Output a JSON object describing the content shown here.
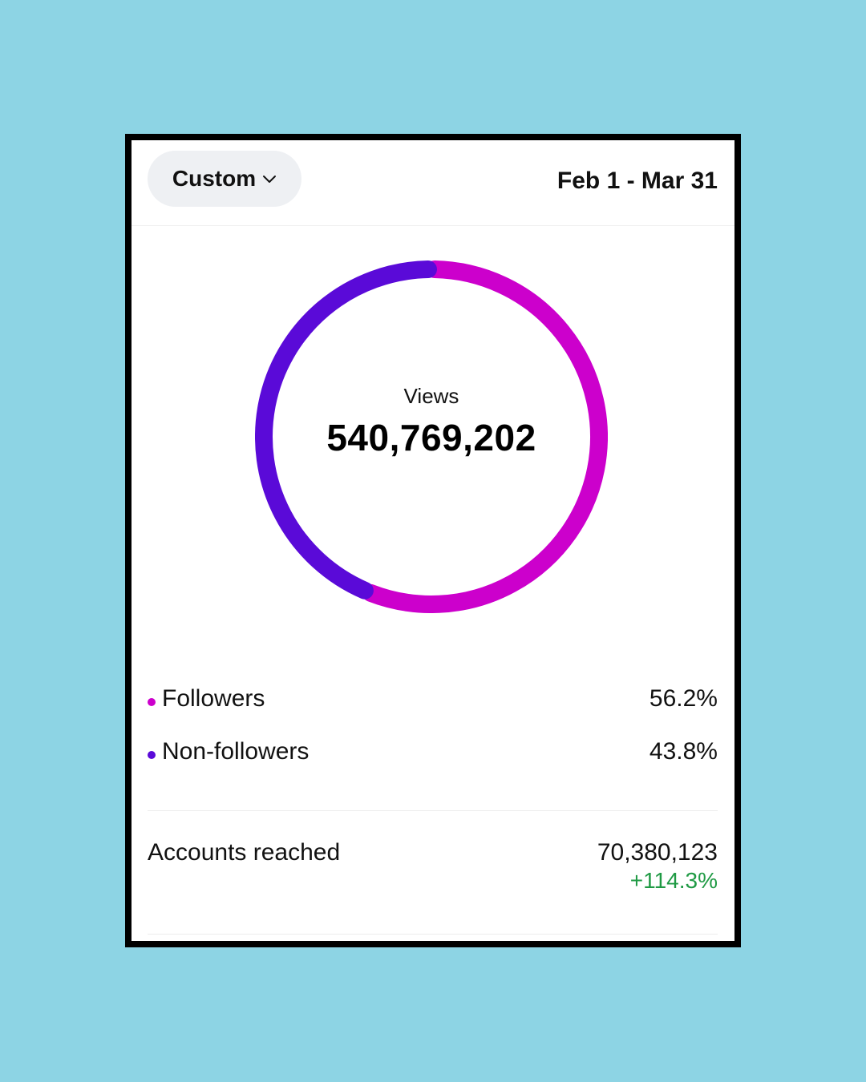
{
  "header": {
    "range_label": "Custom",
    "range_icon": "chevron-down-icon",
    "date_range": "Feb 1 - Mar 31"
  },
  "views": {
    "title": "Views",
    "total": "540,769,202"
  },
  "legend": [
    {
      "label": "Followers",
      "value": "56.2%",
      "color": "#cc00cc"
    },
    {
      "label": "Non-followers",
      "value": "43.8%",
      "color": "#5a0ad8"
    }
  ],
  "chart_data": {
    "type": "pie",
    "categories": [
      "Followers",
      "Non-followers"
    ],
    "values": [
      56.2,
      43.8
    ],
    "colors": [
      "#cc00cc",
      "#5a0ad8"
    ],
    "style": "donut"
  },
  "reach": {
    "label": "Accounts reached",
    "value": "70,380,123",
    "change": "+114.3%",
    "change_color": "#1f9a44"
  },
  "colors": {
    "background": "#8dd4e4",
    "card": "#ffffff",
    "frame": "#000000"
  }
}
